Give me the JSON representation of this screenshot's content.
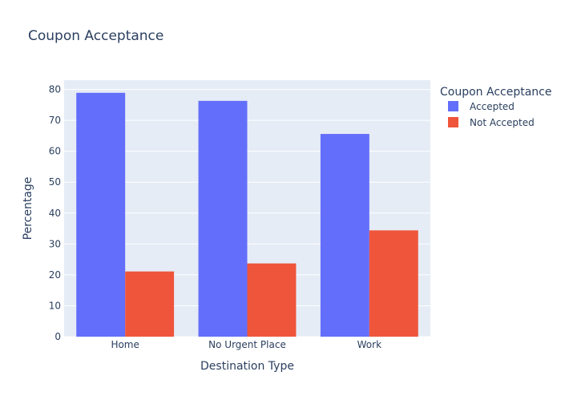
{
  "chart_data": {
    "type": "bar",
    "title": "Coupon Acceptance",
    "xlabel": "Destination Type",
    "ylabel": "Percentage",
    "categories": [
      "Home",
      "No Urgent Place",
      "Work"
    ],
    "series": [
      {
        "name": "Accepted",
        "values": [
          78.9,
          76.3,
          65.6
        ]
      },
      {
        "name": "Not Accepted",
        "values": [
          21.1,
          23.7,
          34.4
        ]
      }
    ],
    "ylim": [
      0,
      83
    ],
    "yticks": [
      0,
      10,
      20,
      30,
      40,
      50,
      60,
      70,
      80
    ],
    "grid": true,
    "legend": {
      "title": "Coupon Acceptance",
      "position": "top-right"
    },
    "colors": {
      "Accepted": "#636efa",
      "Not Accepted": "#ef553b",
      "plot_background": "#e5ecf6",
      "text": "#2a3f5f"
    }
  }
}
